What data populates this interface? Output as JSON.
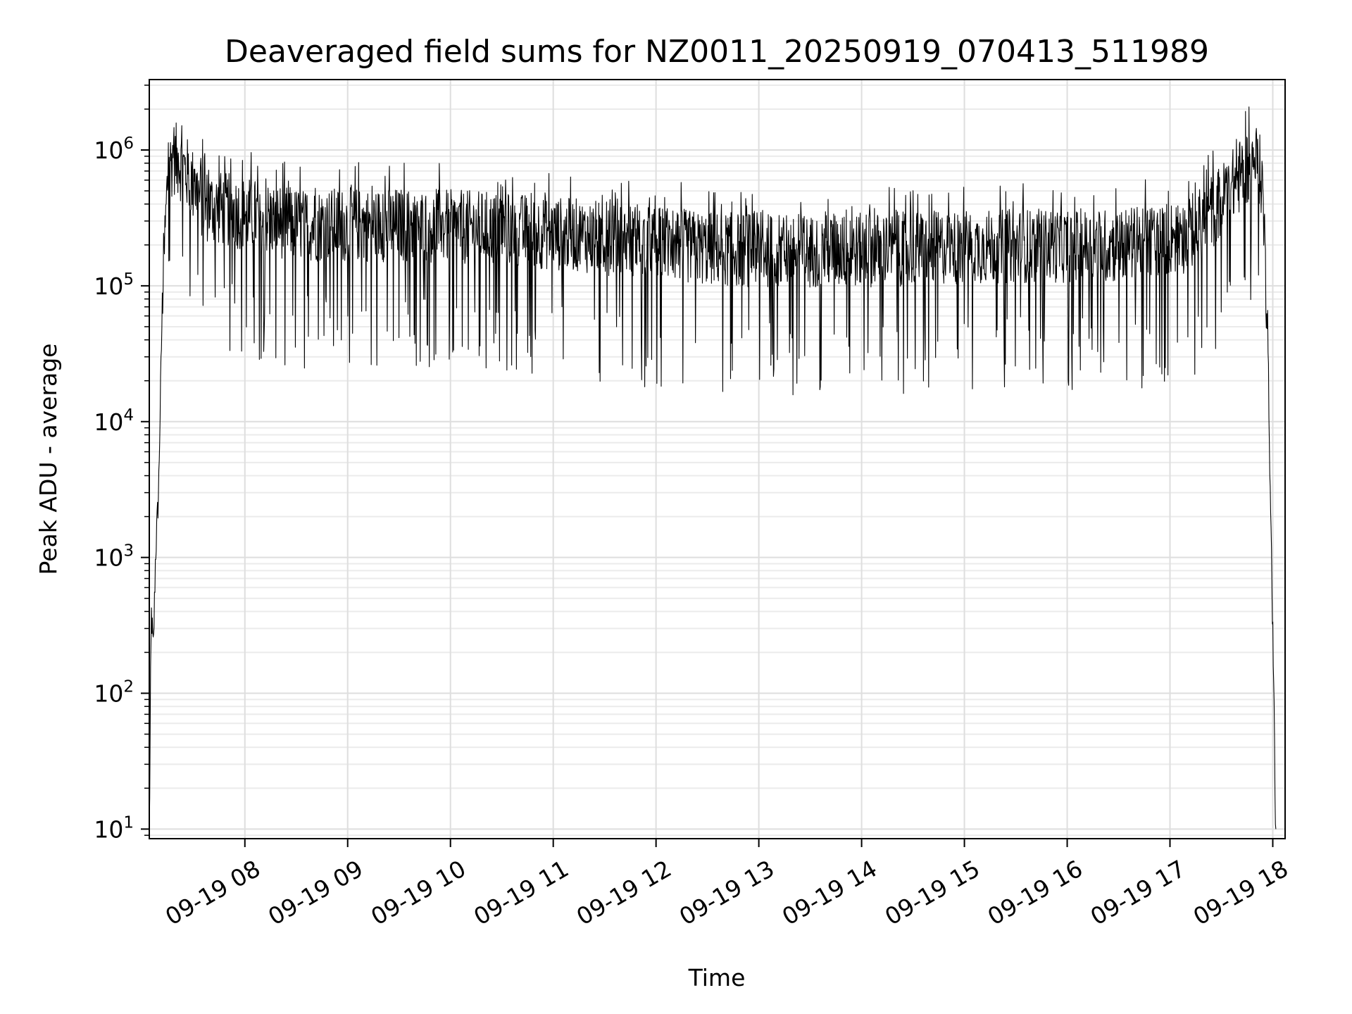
{
  "chart_data": {
    "type": "line",
    "title": "Deaveraged field sums for NZ0011_20250919_070413_511989",
    "xlabel": "Time",
    "ylabel": "Peak ADU - average",
    "yscale": "log",
    "ylim": [
      8.5,
      3300000
    ],
    "xlim_hours": [
      7.07,
      18.12
    ],
    "grid": true,
    "line_color": "#000000",
    "x_ticks": [
      {
        "hour": 8,
        "label": "09-19 08"
      },
      {
        "hour": 9,
        "label": "09-19 09"
      },
      {
        "hour": 10,
        "label": "09-19 10"
      },
      {
        "hour": 11,
        "label": "09-19 11"
      },
      {
        "hour": 12,
        "label": "09-19 12"
      },
      {
        "hour": 13,
        "label": "09-19 13"
      },
      {
        "hour": 14,
        "label": "09-19 14"
      },
      {
        "hour": 15,
        "label": "09-19 15"
      },
      {
        "hour": 16,
        "label": "09-19 16"
      },
      {
        "hour": 17,
        "label": "09-19 17"
      },
      {
        "hour": 18,
        "label": "09-19 18"
      }
    ],
    "y_ticks": [
      {
        "value": 10,
        "base": "10",
        "exp": "1"
      },
      {
        "value": 100,
        "base": "10",
        "exp": "2"
      },
      {
        "value": 1000,
        "base": "10",
        "exp": "3"
      },
      {
        "value": 10000,
        "base": "10",
        "exp": "4"
      },
      {
        "value": 100000,
        "base": "10",
        "exp": "5"
      },
      {
        "value": 1000000,
        "base": "10",
        "exp": "6"
      }
    ],
    "series": [
      {
        "name": "field sum",
        "envelope": [
          {
            "hour": 7.07,
            "value": 9
          },
          {
            "hour": 7.09,
            "value": 400
          },
          {
            "hour": 7.11,
            "value": 200
          },
          {
            "hour": 7.13,
            "value": 1000
          },
          {
            "hour": 7.16,
            "value": 3000
          },
          {
            "hour": 7.2,
            "value": 100000
          },
          {
            "hour": 7.25,
            "value": 700000
          },
          {
            "hour": 7.3,
            "value": 950000
          },
          {
            "hour": 7.4,
            "value": 800000
          },
          {
            "hour": 7.6,
            "value": 420000
          },
          {
            "hour": 8.5,
            "value": 300000
          },
          {
            "hour": 9.5,
            "value": 300000
          },
          {
            "hour": 10.5,
            "value": 280000
          },
          {
            "hour": 11.5,
            "value": 240000
          },
          {
            "hour": 12.5,
            "value": 200000
          },
          {
            "hour": 13.5,
            "value": 190000
          },
          {
            "hour": 14.5,
            "value": 200000
          },
          {
            "hour": 15.5,
            "value": 210000
          },
          {
            "hour": 16.5,
            "value": 210000
          },
          {
            "hour": 17.2,
            "value": 250000
          },
          {
            "hour": 17.5,
            "value": 450000
          },
          {
            "hour": 17.75,
            "value": 800000
          },
          {
            "hour": 17.85,
            "value": 900000
          },
          {
            "hour": 17.9,
            "value": 600000
          },
          {
            "hour": 17.95,
            "value": 50000
          },
          {
            "hour": 17.98,
            "value": 2000
          },
          {
            "hour": 18.0,
            "value": 300
          },
          {
            "hour": 18.03,
            "value": 9
          }
        ],
        "noise_decades_down": 1.1,
        "noise_decades_up": 0.45,
        "samples": 2600
      }
    ]
  }
}
